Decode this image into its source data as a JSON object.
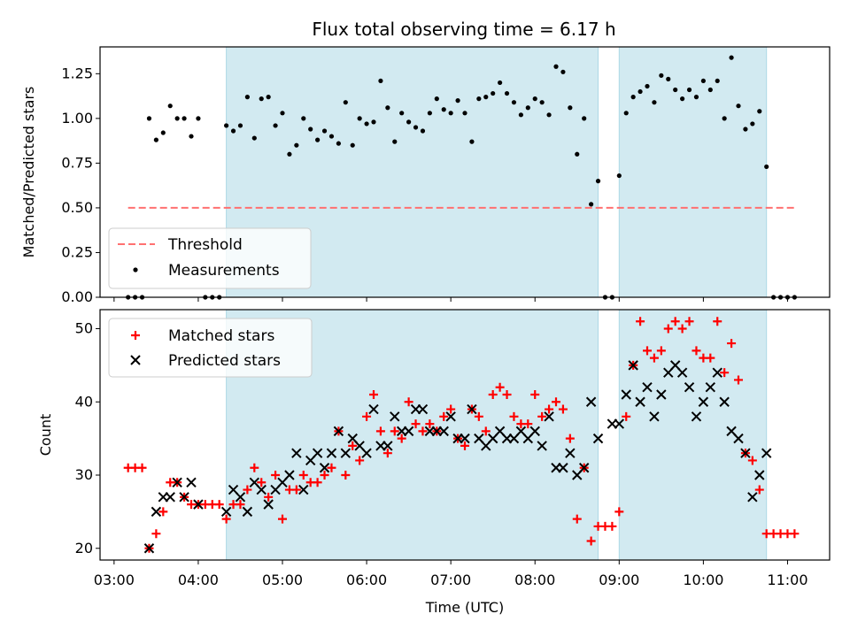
{
  "colors": {
    "band": "#add8e6",
    "threshold": "#ff7070",
    "matched": "#ff0000",
    "predicted": "#000000",
    "measurement": "#000000"
  },
  "chart_data": [
    {
      "type": "scatter",
      "title": "Flux total observing time = 6.17 h",
      "xlabel": "",
      "ylabel": "Matched/Predicted stars",
      "xlim": [
        "02:50",
        "11:30"
      ],
      "ylim": [
        0,
        1.4
      ],
      "yticks": [
        "0.00",
        "0.25",
        "0.50",
        "0.75",
        "1.00",
        "1.25"
      ],
      "bands": [
        [
          "04:20",
          "08:45"
        ],
        [
          "09:00",
          "10:45"
        ]
      ],
      "threshold": {
        "name": "Threshold",
        "value": 0.5,
        "x": [
          "03:10",
          "11:05"
        ]
      },
      "legend": {
        "position": "lower-left",
        "entries": [
          "Threshold",
          "Measurements"
        ]
      },
      "series": [
        {
          "name": "Measurements",
          "x": [
            "03:10",
            "03:15",
            "03:20",
            "03:25",
            "03:30",
            "03:35",
            "03:40",
            "03:45",
            "03:50",
            "03:55",
            "04:00",
            "04:05",
            "04:10",
            "04:15",
            "04:20",
            "04:25",
            "04:30",
            "04:35",
            "04:40",
            "04:45",
            "04:50",
            "04:55",
            "05:00",
            "05:05",
            "05:10",
            "05:15",
            "05:20",
            "05:25",
            "05:30",
            "05:35",
            "05:40",
            "05:45",
            "05:50",
            "05:55",
            "06:00",
            "06:05",
            "06:10",
            "06:15",
            "06:20",
            "06:25",
            "06:30",
            "06:35",
            "06:40",
            "06:45",
            "06:50",
            "06:55",
            "07:00",
            "07:05",
            "07:10",
            "07:15",
            "07:20",
            "07:25",
            "07:30",
            "07:35",
            "07:40",
            "07:45",
            "07:50",
            "07:55",
            "08:00",
            "08:05",
            "08:10",
            "08:15",
            "08:20",
            "08:25",
            "08:30",
            "08:35",
            "08:40",
            "08:45",
            "08:50",
            "08:55",
            "09:00",
            "09:05",
            "09:10",
            "09:15",
            "09:20",
            "09:25",
            "09:30",
            "09:35",
            "09:40",
            "09:45",
            "09:50",
            "09:55",
            "10:00",
            "10:05",
            "10:10",
            "10:15",
            "10:20",
            "10:25",
            "10:30",
            "10:35",
            "10:40",
            "10:45",
            "10:50",
            "10:55",
            "11:00",
            "11:05"
          ],
          "y": [
            0,
            0,
            0,
            1.0,
            0.88,
            0.92,
            1.07,
            1.0,
            1.0,
            0.9,
            1.0,
            0,
            0,
            0,
            0.96,
            0.93,
            0.96,
            1.12,
            0.89,
            1.11,
            1.12,
            0.96,
            1.03,
            0.8,
            0.85,
            1.0,
            0.94,
            0.88,
            0.93,
            0.9,
            0.86,
            1.09,
            0.85,
            1.0,
            0.97,
            0.98,
            1.21,
            1.06,
            0.87,
            1.03,
            0.98,
            0.95,
            0.93,
            1.03,
            1.11,
            1.05,
            1.03,
            1.1,
            1.03,
            0.87,
            1.11,
            1.12,
            1.14,
            1.2,
            1.14,
            1.09,
            1.02,
            1.06,
            1.11,
            1.09,
            1.02,
            1.29,
            1.26,
            1.06,
            0.8,
            1.0,
            0.52,
            0.65,
            0,
            0,
            0.68,
            1.03,
            1.12,
            1.15,
            1.18,
            1.09,
            1.24,
            1.22,
            1.16,
            1.11,
            1.16,
            1.12,
            1.21,
            1.16,
            1.21,
            1.0,
            1.34,
            1.07,
            0.94,
            0.97,
            1.04,
            0.73,
            0,
            0,
            0,
            0
          ]
        }
      ]
    },
    {
      "type": "scatter",
      "xlabel": "Time (UTC)",
      "ylabel": "Count",
      "xlim": [
        "02:50",
        "11:30"
      ],
      "ylim": [
        18.4,
        52.6
      ],
      "yticks": [
        "20",
        "30",
        "40",
        "50"
      ],
      "xticks": [
        "03:00",
        "04:00",
        "05:00",
        "06:00",
        "07:00",
        "08:00",
        "09:00",
        "10:00",
        "11:00"
      ],
      "bands": [
        [
          "04:20",
          "08:45"
        ],
        [
          "09:00",
          "10:45"
        ]
      ],
      "legend": {
        "position": "upper-left",
        "entries": [
          "Matched stars",
          "Predicted stars"
        ]
      },
      "series": [
        {
          "name": "Matched stars",
          "marker": "+",
          "x": [
            "03:10",
            "03:15",
            "03:20",
            "03:25",
            "03:30",
            "03:35",
            "03:40",
            "03:45",
            "03:50",
            "03:55",
            "04:00",
            "04:05",
            "04:10",
            "04:15",
            "04:20",
            "04:25",
            "04:30",
            "04:35",
            "04:40",
            "04:45",
            "04:50",
            "04:55",
            "05:00",
            "05:05",
            "05:10",
            "05:15",
            "05:20",
            "05:25",
            "05:30",
            "05:35",
            "05:40",
            "05:45",
            "05:50",
            "05:55",
            "06:00",
            "06:05",
            "06:10",
            "06:15",
            "06:20",
            "06:25",
            "06:30",
            "06:35",
            "06:40",
            "06:45",
            "06:50",
            "06:55",
            "07:00",
            "07:05",
            "07:10",
            "07:15",
            "07:20",
            "07:25",
            "07:30",
            "07:35",
            "07:40",
            "07:45",
            "07:50",
            "07:55",
            "08:00",
            "08:05",
            "08:10",
            "08:15",
            "08:20",
            "08:25",
            "08:30",
            "08:35",
            "08:40",
            "08:45",
            "08:50",
            "08:55",
            "09:00",
            "09:05",
            "09:10",
            "09:15",
            "09:20",
            "09:25",
            "09:30",
            "09:35",
            "09:40",
            "09:45",
            "09:50",
            "09:55",
            "10:00",
            "10:05",
            "10:10",
            "10:15",
            "10:20",
            "10:25",
            "10:30",
            "10:35",
            "10:40",
            "10:45",
            "10:50",
            "10:55",
            "11:00",
            "11:05"
          ],
          "y": [
            31,
            31,
            31,
            20,
            22,
            25,
            29,
            29,
            27,
            26,
            26,
            26,
            26,
            26,
            24,
            26,
            26,
            28,
            31,
            29,
            27,
            30,
            24,
            28,
            28,
            30,
            29,
            29,
            30,
            31,
            36,
            30,
            34,
            32,
            38,
            41,
            36,
            33,
            36,
            35,
            40,
            37,
            36,
            37,
            36,
            38,
            39,
            35,
            34,
            39,
            38,
            36,
            41,
            42,
            41,
            38,
            37,
            37,
            41,
            38,
            39,
            40,
            39,
            35,
            24,
            31,
            21,
            23,
            23,
            23,
            25,
            38,
            45,
            51,
            47,
            46,
            47,
            50,
            51,
            50,
            51,
            47,
            46,
            46,
            51,
            44,
            48,
            43,
            33,
            32,
            28,
            22,
            22,
            22,
            22,
            22
          ]
        },
        {
          "name": "Predicted stars",
          "marker": "x",
          "x": [
            "03:25",
            "03:30",
            "03:35",
            "03:40",
            "03:45",
            "03:50",
            "03:55",
            "04:00",
            "04:20",
            "04:25",
            "04:30",
            "04:35",
            "04:40",
            "04:45",
            "04:50",
            "04:55",
            "05:00",
            "05:05",
            "05:10",
            "05:15",
            "05:20",
            "05:25",
            "05:30",
            "05:35",
            "05:40",
            "05:45",
            "05:50",
            "05:55",
            "06:00",
            "06:05",
            "06:10",
            "06:15",
            "06:20",
            "06:25",
            "06:30",
            "06:35",
            "06:40",
            "06:45",
            "06:50",
            "06:55",
            "07:00",
            "07:05",
            "07:10",
            "07:15",
            "07:20",
            "07:25",
            "07:30",
            "07:35",
            "07:40",
            "07:45",
            "07:50",
            "07:55",
            "08:00",
            "08:05",
            "08:10",
            "08:15",
            "08:20",
            "08:25",
            "08:30",
            "08:35",
            "08:40",
            "08:45",
            "08:55",
            "09:00",
            "09:05",
            "09:10",
            "09:15",
            "09:20",
            "09:25",
            "09:30",
            "09:35",
            "09:40",
            "09:45",
            "09:50",
            "09:55",
            "10:00",
            "10:05",
            "10:10",
            "10:15",
            "10:20",
            "10:25",
            "10:30",
            "10:35",
            "10:40",
            "10:45"
          ],
          "y": [
            20,
            25,
            27,
            27,
            29,
            27,
            29,
            26,
            25,
            28,
            27,
            25,
            29,
            28,
            26,
            28,
            29,
            30,
            33,
            28,
            32,
            33,
            31,
            33,
            36,
            33,
            35,
            34,
            33,
            39,
            34,
            34,
            38,
            36,
            36,
            39,
            39,
            36,
            36,
            36,
            38,
            35,
            35,
            39,
            35,
            34,
            35,
            36,
            35,
            35,
            36,
            35,
            36,
            34,
            38,
            31,
            31,
            33,
            30,
            31,
            40,
            35,
            37,
            37,
            41,
            45,
            40,
            42,
            38,
            41,
            44,
            45,
            44,
            42,
            38,
            40,
            42,
            44,
            40,
            36,
            35,
            33,
            27,
            30,
            33
          ]
        }
      ]
    }
  ]
}
